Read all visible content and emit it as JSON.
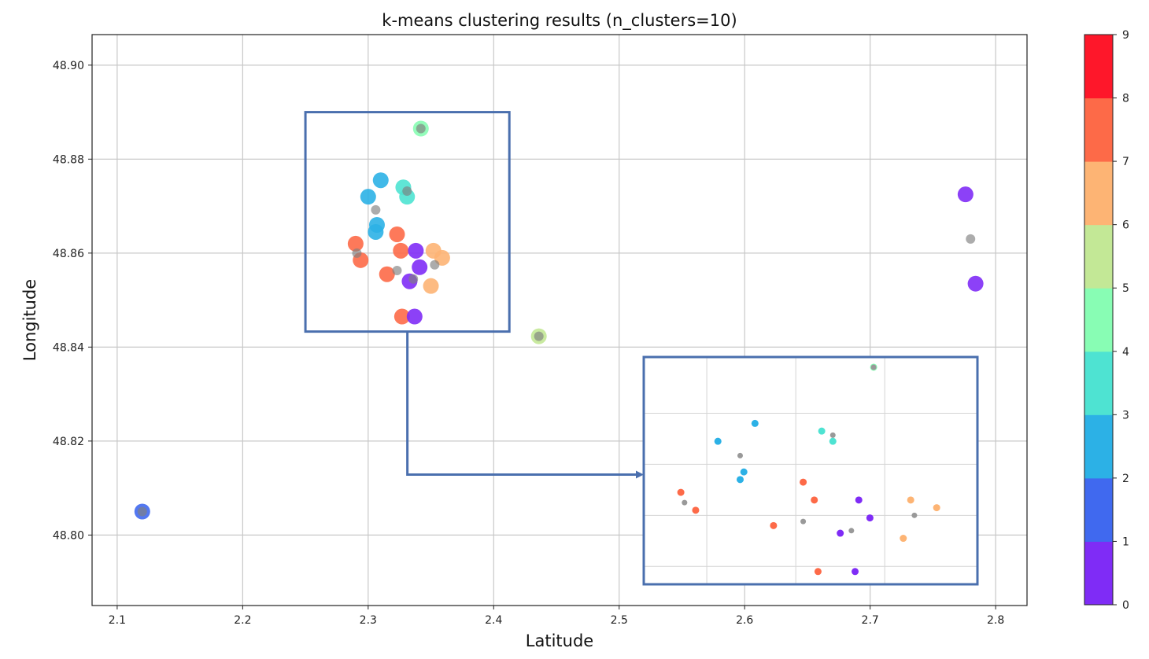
{
  "chart_data": {
    "type": "scatter",
    "title": "k-means clustering results (n_clusters=10)",
    "xlabel": "Latitude",
    "ylabel": "Longitude",
    "xlim": [
      2.08,
      2.825
    ],
    "ylim": [
      48.785,
      48.9065
    ],
    "x_ticks": [
      "2.1",
      "2.2",
      "2.3",
      "2.4",
      "2.5",
      "2.6",
      "2.7",
      "2.8"
    ],
    "y_ticks": [
      "48.80",
      "48.82",
      "48.84",
      "48.86",
      "48.88",
      "48.90"
    ],
    "grid": true,
    "colorbar": {
      "min": 0,
      "max": 9,
      "ticks": [
        "0",
        "1",
        "2",
        "3",
        "4",
        "5",
        "6",
        "7",
        "8",
        "9"
      ],
      "colormap": "rainbow",
      "colors": [
        "#7f2cf6",
        "#4069ef",
        "#2cb1e6",
        "#4ee3d2",
        "#88fdb4",
        "#c3e896",
        "#fdb474",
        "#fd6a48",
        "#fe172a"
      ]
    },
    "points": [
      {
        "x": 2.342,
        "y": 48.8865,
        "cluster": 5
      },
      {
        "x": 2.31,
        "y": 48.8755,
        "cluster": 3
      },
      {
        "x": 2.328,
        "y": 48.874,
        "cluster": 4
      },
      {
        "x": 2.331,
        "y": 48.872,
        "cluster": 4
      },
      {
        "x": 2.3,
        "y": 48.872,
        "cluster": 3
      },
      {
        "x": 2.307,
        "y": 48.866,
        "cluster": 3
      },
      {
        "x": 2.306,
        "y": 48.8645,
        "cluster": 3
      },
      {
        "x": 2.323,
        "y": 48.864,
        "cluster": 8
      },
      {
        "x": 2.29,
        "y": 48.862,
        "cluster": 8
      },
      {
        "x": 2.326,
        "y": 48.8605,
        "cluster": 8
      },
      {
        "x": 2.338,
        "y": 48.8605,
        "cluster": 0
      },
      {
        "x": 2.352,
        "y": 48.8605,
        "cluster": 7
      },
      {
        "x": 2.359,
        "y": 48.859,
        "cluster": 7
      },
      {
        "x": 2.294,
        "y": 48.8585,
        "cluster": 8
      },
      {
        "x": 2.341,
        "y": 48.857,
        "cluster": 0
      },
      {
        "x": 2.315,
        "y": 48.8555,
        "cluster": 8
      },
      {
        "x": 2.333,
        "y": 48.854,
        "cluster": 0
      },
      {
        "x": 2.35,
        "y": 48.853,
        "cluster": 7
      },
      {
        "x": 2.327,
        "y": 48.8465,
        "cluster": 8
      },
      {
        "x": 2.337,
        "y": 48.8465,
        "cluster": 0
      },
      {
        "x": 2.436,
        "y": 48.8423,
        "cluster": 6
      },
      {
        "x": 2.776,
        "y": 48.8725,
        "cluster": 1
      },
      {
        "x": 2.784,
        "y": 48.8535,
        "cluster": 1
      },
      {
        "x": 2.12,
        "y": 48.805,
        "cluster": 2
      }
    ],
    "centroids": [
      {
        "x": 2.342,
        "y": 48.8865
      },
      {
        "x": 2.331,
        "y": 48.8732
      },
      {
        "x": 2.306,
        "y": 48.8692
      },
      {
        "x": 2.291,
        "y": 48.86
      },
      {
        "x": 2.323,
        "y": 48.8563
      },
      {
        "x": 2.336,
        "y": 48.8545
      },
      {
        "x": 2.353,
        "y": 48.8575
      },
      {
        "x": 2.436,
        "y": 48.8423
      },
      {
        "x": 2.78,
        "y": 48.863
      },
      {
        "x": 2.12,
        "y": 48.805
      }
    ]
  },
  "annotation": {
    "zoom_box_data": {
      "x0": 2.25,
      "x1": 2.4125,
      "y0": 48.8433,
      "y1": 48.89
    },
    "inset_data": {
      "xlim": [
        2.28,
        2.37
      ],
      "ylim": [
        48.844,
        48.8885
      ],
      "grid_x": [
        2.297,
        2.321,
        2.345
      ],
      "grid_y": [
        48.8775,
        48.8675,
        48.8575,
        48.8475
      ]
    },
    "box_color": "#4a6fae"
  }
}
